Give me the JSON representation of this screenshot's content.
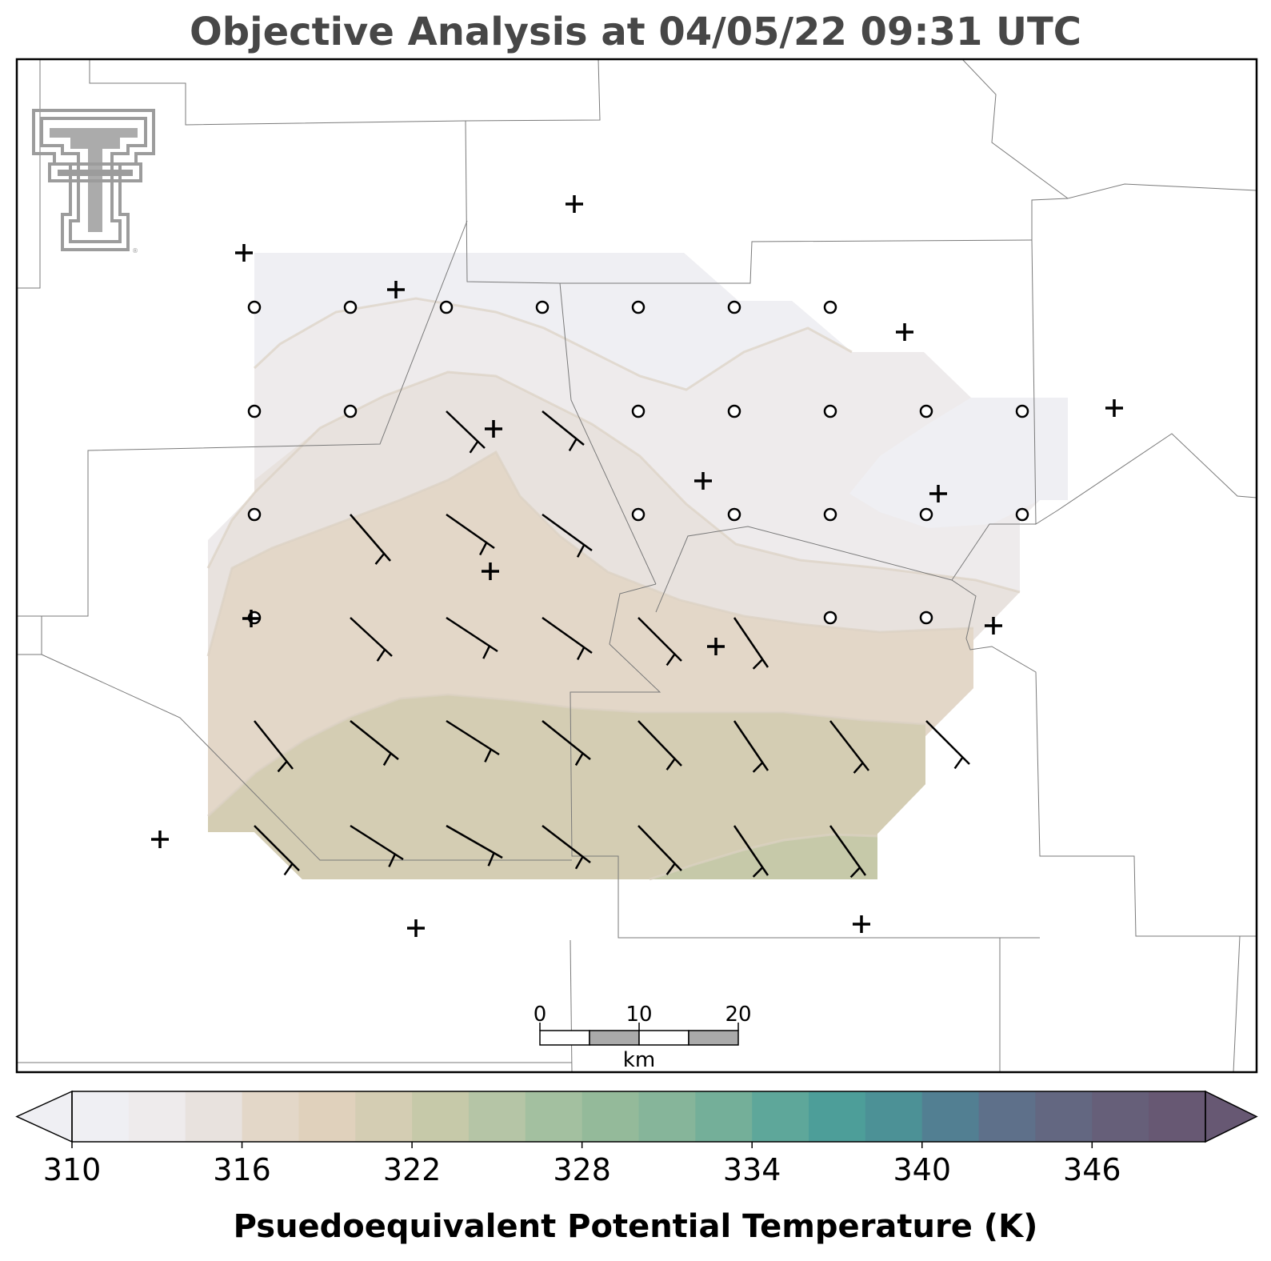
{
  "title": "Objective Analysis at 04/05/22 09:31 UTC",
  "colorbar": {
    "label": "Psuedoequivalent Potential Temperature (K)",
    "ticks": [
      "310",
      "316",
      "322",
      "328",
      "334",
      "340",
      "346"
    ],
    "min": 310,
    "max": 350,
    "step": 2,
    "colors": [
      "#efeff3",
      "#eeebec",
      "#e8e2de",
      "#e3d7c8",
      "#e0d1bc",
      "#d4cdb3",
      "#c6c9a9",
      "#b5c5a6",
      "#a3c0a0",
      "#94ba9a",
      "#86b59a",
      "#74af99",
      "#5ea79a",
      "#4d9e99",
      "#4c9196",
      "#527f92",
      "#5e708a",
      "#636781",
      "#665f79",
      "#675873"
    ],
    "extend": "both"
  },
  "scalebar": {
    "unit": "km",
    "labels": [
      "0",
      "10",
      "20"
    ]
  },
  "logo": "texas-tech-double-t-logo",
  "chart_data": {
    "type": "map",
    "variable": "Psuedoequivalent Potential Temperature (K)",
    "valid_time": "04/05/22 09:31 UTC",
    "stations": "plus markers (observation sites)",
    "calm_wind": "circles",
    "wind_barbs": "staff with flag at tail, pointing from northwest"
  }
}
